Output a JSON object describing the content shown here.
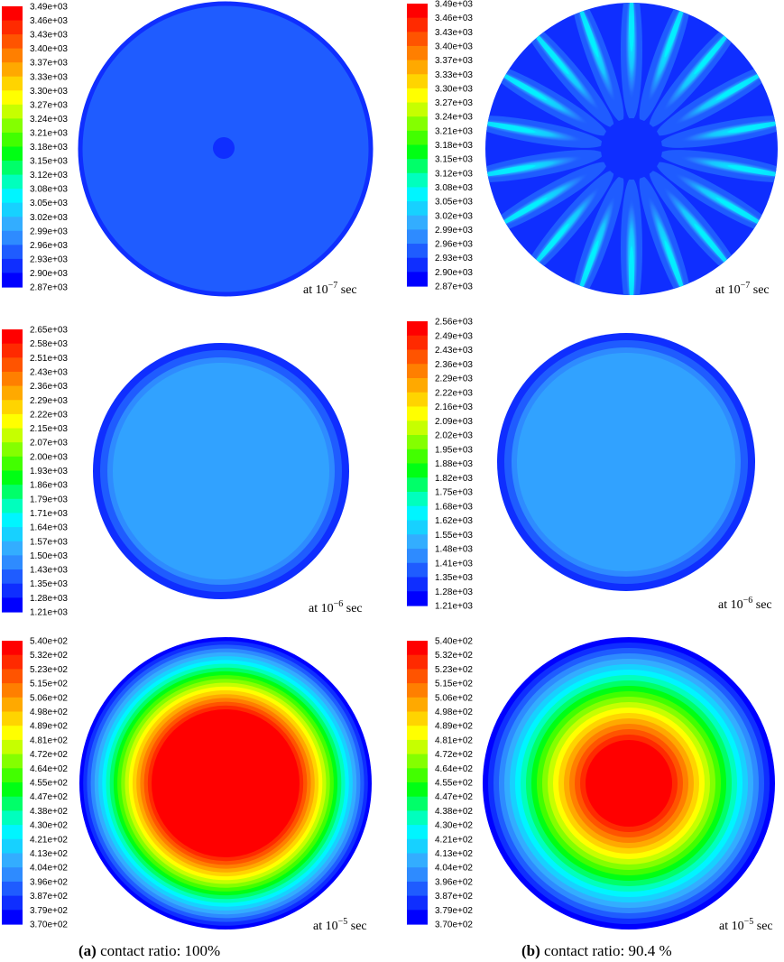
{
  "colormap": [
    "#0000ff",
    "#0f2eff",
    "#1f5cff",
    "#2e8bff",
    "#33adff",
    "#17d1ff",
    "#00f5ff",
    "#00ffbd",
    "#00ff69",
    "#00ff14",
    "#42ff00",
    "#84ff00",
    "#c6ff00",
    "#ffff00",
    "#ffd400",
    "#ffa900",
    "#ff7f00",
    "#ff5400",
    "#ff2a00",
    "#ff0000"
  ],
  "panels": [
    {
      "id": "a1",
      "legend": [
        "3.49e+03",
        "3.46e+03",
        "3.43e+03",
        "3.40e+03",
        "3.37e+03",
        "3.33e+03",
        "3.30e+03",
        "3.27e+03",
        "3.24e+03",
        "3.21e+03",
        "3.18e+03",
        "3.15e+03",
        "3.12e+03",
        "3.08e+03",
        "3.05e+03",
        "3.02e+03",
        "2.99e+03",
        "2.96e+03",
        "2.93e+03",
        "2.90e+03",
        "2.87e+03"
      ],
      "time_label": {
        "prefix": "at 10",
        "exponent": "−7",
        "suffix": " sec"
      }
    },
    {
      "id": "b1",
      "legend": [
        "3.49e+03",
        "3.46e+03",
        "3.43e+03",
        "3.40e+03",
        "3.37e+03",
        "3.33e+03",
        "3.30e+03",
        "3.27e+03",
        "3.24e+03",
        "3.21e+03",
        "3.18e+03",
        "3.15e+03",
        "3.12e+03",
        "3.08e+03",
        "3.05e+03",
        "3.02e+03",
        "2.99e+03",
        "2.96e+03",
        "2.93e+03",
        "2.90e+03",
        "2.87e+03"
      ],
      "time_label": {
        "prefix": "at 10",
        "exponent": "−7",
        "suffix": " sec"
      }
    },
    {
      "id": "a2",
      "legend": [
        "2.65e+03",
        "2.58e+03",
        "2.51e+03",
        "2.43e+03",
        "2.36e+03",
        "2.29e+03",
        "2.22e+03",
        "2.15e+03",
        "2.07e+03",
        "2.00e+03",
        "1.93e+03",
        "1.86e+03",
        "1.79e+03",
        "1.71e+03",
        "1.64e+03",
        "1.57e+03",
        "1.50e+03",
        "1.43e+03",
        "1.35e+03",
        "1.28e+03",
        "1.21e+03"
      ],
      "time_label": {
        "prefix": "at 10",
        "exponent": "−6",
        "suffix": " sec"
      }
    },
    {
      "id": "b2",
      "legend": [
        "2.56e+03",
        "2.49e+03",
        "2.43e+03",
        "2.36e+03",
        "2.29e+03",
        "2.22e+03",
        "2.16e+03",
        "2.09e+03",
        "2.02e+03",
        "1.95e+03",
        "1.88e+03",
        "1.82e+03",
        "1.75e+03",
        "1.68e+03",
        "1.62e+03",
        "1.55e+03",
        "1.48e+03",
        "1.41e+03",
        "1.35e+03",
        "1.28e+03",
        "1.21e+03"
      ],
      "time_label": {
        "prefix": "at 10",
        "exponent": "−6",
        "suffix": " sec"
      }
    },
    {
      "id": "a3",
      "legend": [
        "5.40e+02",
        "5.32e+02",
        "5.23e+02",
        "5.15e+02",
        "5.06e+02",
        "4.98e+02",
        "4.89e+02",
        "4.81e+02",
        "4.72e+02",
        "4.64e+02",
        "4.55e+02",
        "4.47e+02",
        "4.38e+02",
        "4.30e+02",
        "4.21e+02",
        "4.13e+02",
        "4.04e+02",
        "3.96e+02",
        "3.87e+02",
        "3.79e+02",
        "3.70e+02"
      ],
      "time_label": {
        "prefix": "at 10",
        "exponent": "−5",
        "suffix": " sec"
      }
    },
    {
      "id": "b3",
      "legend": [
        "5.40e+02",
        "5.32e+02",
        "5.23e+02",
        "5.15e+02",
        "5.06e+02",
        "4.98e+02",
        "4.89e+02",
        "4.81e+02",
        "4.72e+02",
        "4.64e+02",
        "4.55e+02",
        "4.47e+02",
        "4.38e+02",
        "4.30e+02",
        "4.21e+02",
        "4.13e+02",
        "4.04e+02",
        "3.96e+02",
        "3.87e+02",
        "3.79e+02",
        "3.70e+02"
      ],
      "time_label": {
        "prefix": "at 10",
        "exponent": "−5",
        "suffix": " sec"
      }
    }
  ],
  "captions": {
    "a": {
      "tag": "(a)",
      "text": " contact ratio: 100%"
    },
    "b": {
      "tag": "(b)",
      "text": " contact ratio: 90.4 %"
    }
  }
}
